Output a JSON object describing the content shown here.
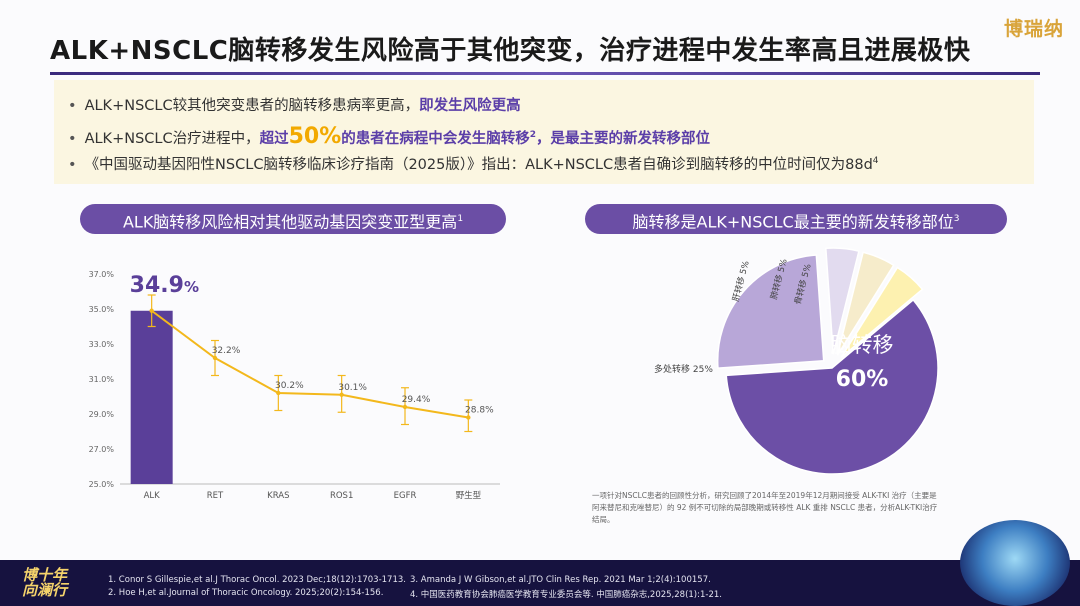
{
  "brand_logo": "博瑞纳",
  "title": "ALK+NSCLC脑转移发生风险高于其他突变，治疗进程中发生率高且进展极快",
  "bullets": {
    "b1_text": "ALK+NSCLC较其他突变患者的脑转移患病率更高，",
    "b1_highlight": "即发生风险更高",
    "b2_text": "ALK+NSCLC治疗进程中，",
    "b2_hl1": "超过",
    "b2_big": "50%",
    "b2_hl2": "的患者在病程中会发生脑转移",
    "b2_sup": "2",
    "b2_hl3": "，是最主要的新发转移部位",
    "b3_text": "《中国驱动基因阳性NSCLC脑转移临床诊疗指南（2025版）》指出：ALK+NSCLC患者自确诊到脑转移的中位时间仅为88d",
    "b3_sup": "4"
  },
  "left_panel": {
    "header": "ALK脑转移风险相对其他驱动基因突变亚型更高",
    "header_sup": "1"
  },
  "right_panel": {
    "header": "脑转移是ALK+NSCLC最主要的新发转移部位",
    "header_sup": "3"
  },
  "chart_data": [
    {
      "type": "bar",
      "title": "ALK脑转移风险相对其他驱动基因突变亚型更高",
      "categories": [
        "ALK",
        "RET",
        "KRAS",
        "ROS1",
        "EGFR",
        "野生型"
      ],
      "values": [
        34.9,
        32.2,
        30.2,
        30.1,
        29.4,
        28.8
      ],
      "value_labels": [
        "34.9%",
        "32.2%",
        "30.2%",
        "30.1%",
        "29.4%",
        "28.8%"
      ],
      "highlight_value": "34.9",
      "highlight_unit": "%",
      "ylim": [
        25.0,
        37.0
      ],
      "yticks": [
        "25.0%",
        "27.0%",
        "29.0%",
        "31.0%",
        "33.0%",
        "35.0%",
        "37.0%"
      ],
      "error_low": [
        34.0,
        31.2,
        29.2,
        29.1,
        28.4,
        28.0
      ],
      "error_high": [
        35.8,
        33.2,
        31.2,
        31.2,
        30.5,
        29.8
      ],
      "bar_color": "#5a3f99",
      "line_color": "#f3b81c"
    },
    {
      "type": "pie",
      "title": "脑转移是ALK+NSCLC最主要的新发转移部位",
      "slices": [
        {
          "label": "脑转移",
          "value": 60,
          "display": "60%",
          "color": "#6c4fa6"
        },
        {
          "label": "多处转移 25%",
          "value": 25,
          "color": "#b8a7d8"
        },
        {
          "label": "肝转移 5%",
          "value": 5,
          "color": "#e2dbef"
        },
        {
          "label": "肺转移 5%",
          "value": 5,
          "color": "#f6eccb"
        },
        {
          "label": "骨转移 5%",
          "value": 5,
          "color": "#fdf1b0"
        }
      ]
    }
  ],
  "study_note": "一项针对NSCLC患者的回顾性分析，研究回顾了2014年至2019年12月期间接受 ALK-TKI 治疗（主要是阿来替尼和克唑替尼）的 92 例不可切除的局部晚期或转移性 ALK 重排 NSCLC 患者，分析ALK-TKI治疗结局。",
  "footer": {
    "brand_line1": "博十年",
    "brand_line2": "向澜行",
    "ref1": "1. Conor S Gillespie,et al.J Thorac Oncol. 2023 Dec;18(12):1703-1713.",
    "ref2": "2. Hoe H,et al.Journal of Thoracic Oncology. 2025;20(2):154-156.",
    "ref3": "3. Amanda J W Gibson,et al.JTO Clin Res Rep. 2021 Mar 1;2(4):100157.",
    "ref4": "4. 中国医药教育协会肺癌医学教育专业委员会等. 中国肺癌杂志,2025,28(1):1-21."
  }
}
